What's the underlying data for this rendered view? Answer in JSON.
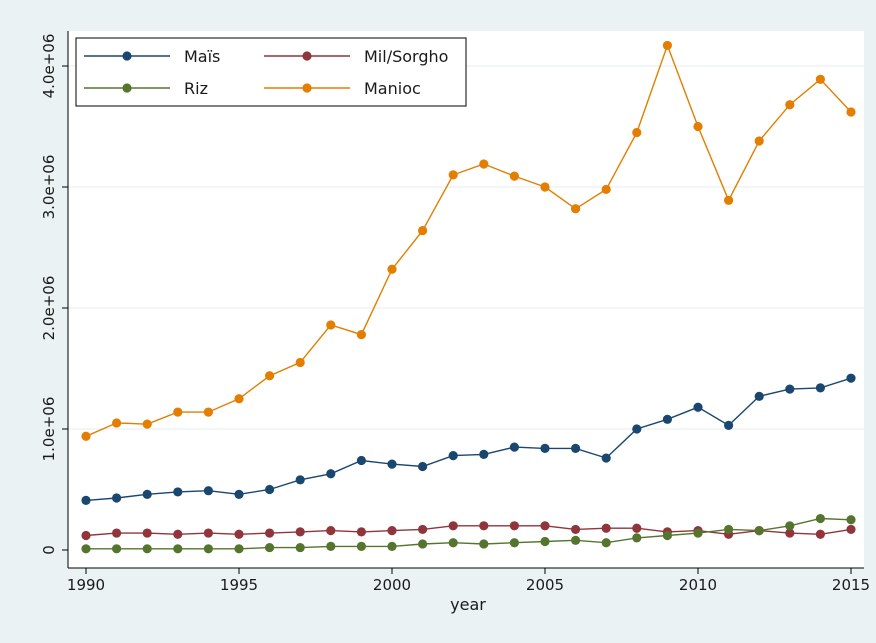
{
  "chart_data": {
    "type": "line",
    "title": "",
    "xlabel": "year",
    "ylabel": "",
    "xlim": [
      1990,
      2015
    ],
    "ylim": [
      0,
      4200000
    ],
    "x_ticks": [
      1990,
      1995,
      2000,
      2005,
      2010,
      2015
    ],
    "x_tick_labels": [
      "1990",
      "1995",
      "2000",
      "2005",
      "2010",
      "2015"
    ],
    "y_ticks": [
      0,
      1000000,
      2000000,
      3000000,
      4000000
    ],
    "y_tick_labels": [
      "0",
      "1.0e+06",
      "2.0e+06",
      "3.0e+06",
      "4.0e+06"
    ],
    "grid": true,
    "legend_position": "top-left",
    "x": [
      1990,
      1991,
      1992,
      1993,
      1994,
      1995,
      1996,
      1997,
      1998,
      1999,
      2000,
      2001,
      2002,
      2003,
      2004,
      2005,
      2006,
      2007,
      2008,
      2009,
      2010,
      2011,
      2012,
      2013,
      2014,
      2015
    ],
    "series": [
      {
        "name": "Maïs",
        "color": "#1a476f",
        "values": [
          410000,
          430000,
          460000,
          480000,
          490000,
          460000,
          500000,
          580000,
          630000,
          740000,
          710000,
          690000,
          780000,
          790000,
          850000,
          840000,
          840000,
          760000,
          1000000,
          1080000,
          1180000,
          1030000,
          1270000,
          1330000,
          1340000,
          1420000
        ]
      },
      {
        "name": "Mil/Sorgho",
        "color": "#90353b",
        "values": [
          120000,
          140000,
          140000,
          130000,
          140000,
          130000,
          140000,
          150000,
          160000,
          150000,
          160000,
          170000,
          200000,
          200000,
          200000,
          200000,
          170000,
          180000,
          180000,
          150000,
          160000,
          130000,
          160000,
          140000,
          130000,
          170000
        ]
      },
      {
        "name": "Riz",
        "color": "#55752f",
        "values": [
          10000,
          10000,
          10000,
          10000,
          10000,
          10000,
          20000,
          20000,
          30000,
          30000,
          30000,
          50000,
          60000,
          50000,
          60000,
          70000,
          80000,
          60000,
          100000,
          120000,
          140000,
          170000,
          160000,
          200000,
          260000,
          250000
        ]
      },
      {
        "name": "Manioc",
        "color": "#e37e00",
        "values": [
          940000,
          1050000,
          1040000,
          1140000,
          1140000,
          1250000,
          1440000,
          1550000,
          1860000,
          1780000,
          2320000,
          2640000,
          3100000,
          3190000,
          3090000,
          3000000,
          2820000,
          2980000,
          3450000,
          4170000,
          3500000,
          2890000,
          3380000,
          3680000,
          3890000,
          3620000
        ]
      }
    ]
  }
}
